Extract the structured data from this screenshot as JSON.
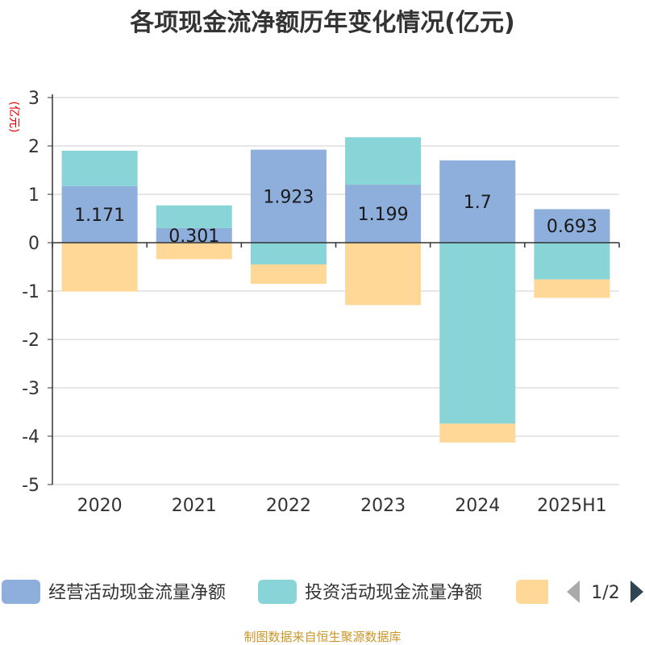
{
  "chart_data": {
    "type": "bar",
    "stacked": true,
    "title": "各项现金流净额历年变化情况(亿元)",
    "ylabel": "(亿元)",
    "ylim": [
      -5,
      3
    ],
    "yticks": [
      "3",
      "2",
      "1",
      "0",
      "-1",
      "-2",
      "-3",
      "-4",
      "-5"
    ],
    "categories": [
      "2020",
      "2021",
      "2022",
      "2023",
      "2024",
      "2025H1"
    ],
    "series": [
      {
        "name": "经营活动现金流量净额",
        "color": "#8eaedb",
        "values": [
          1.171,
          0.301,
          1.923,
          1.199,
          1.7,
          0.693
        ],
        "labels": [
          "1.171",
          "0.301",
          "1.923",
          "1.199",
          "1.7",
          "0.693"
        ]
      },
      {
        "name": "投资活动现金流量净额",
        "color": "#88d4d7",
        "values": [
          0.73,
          0.47,
          -0.45,
          0.98,
          -3.74,
          -0.76
        ]
      },
      {
        "name": "",
        "color": "#ffd897",
        "values": [
          -1.01,
          -0.34,
          -0.4,
          -1.29,
          -0.39,
          -0.38
        ]
      }
    ],
    "grid": true,
    "legend": "bottom",
    "legend_page": "1/2"
  },
  "source_text": "制图数据来自恒生聚源数据库"
}
